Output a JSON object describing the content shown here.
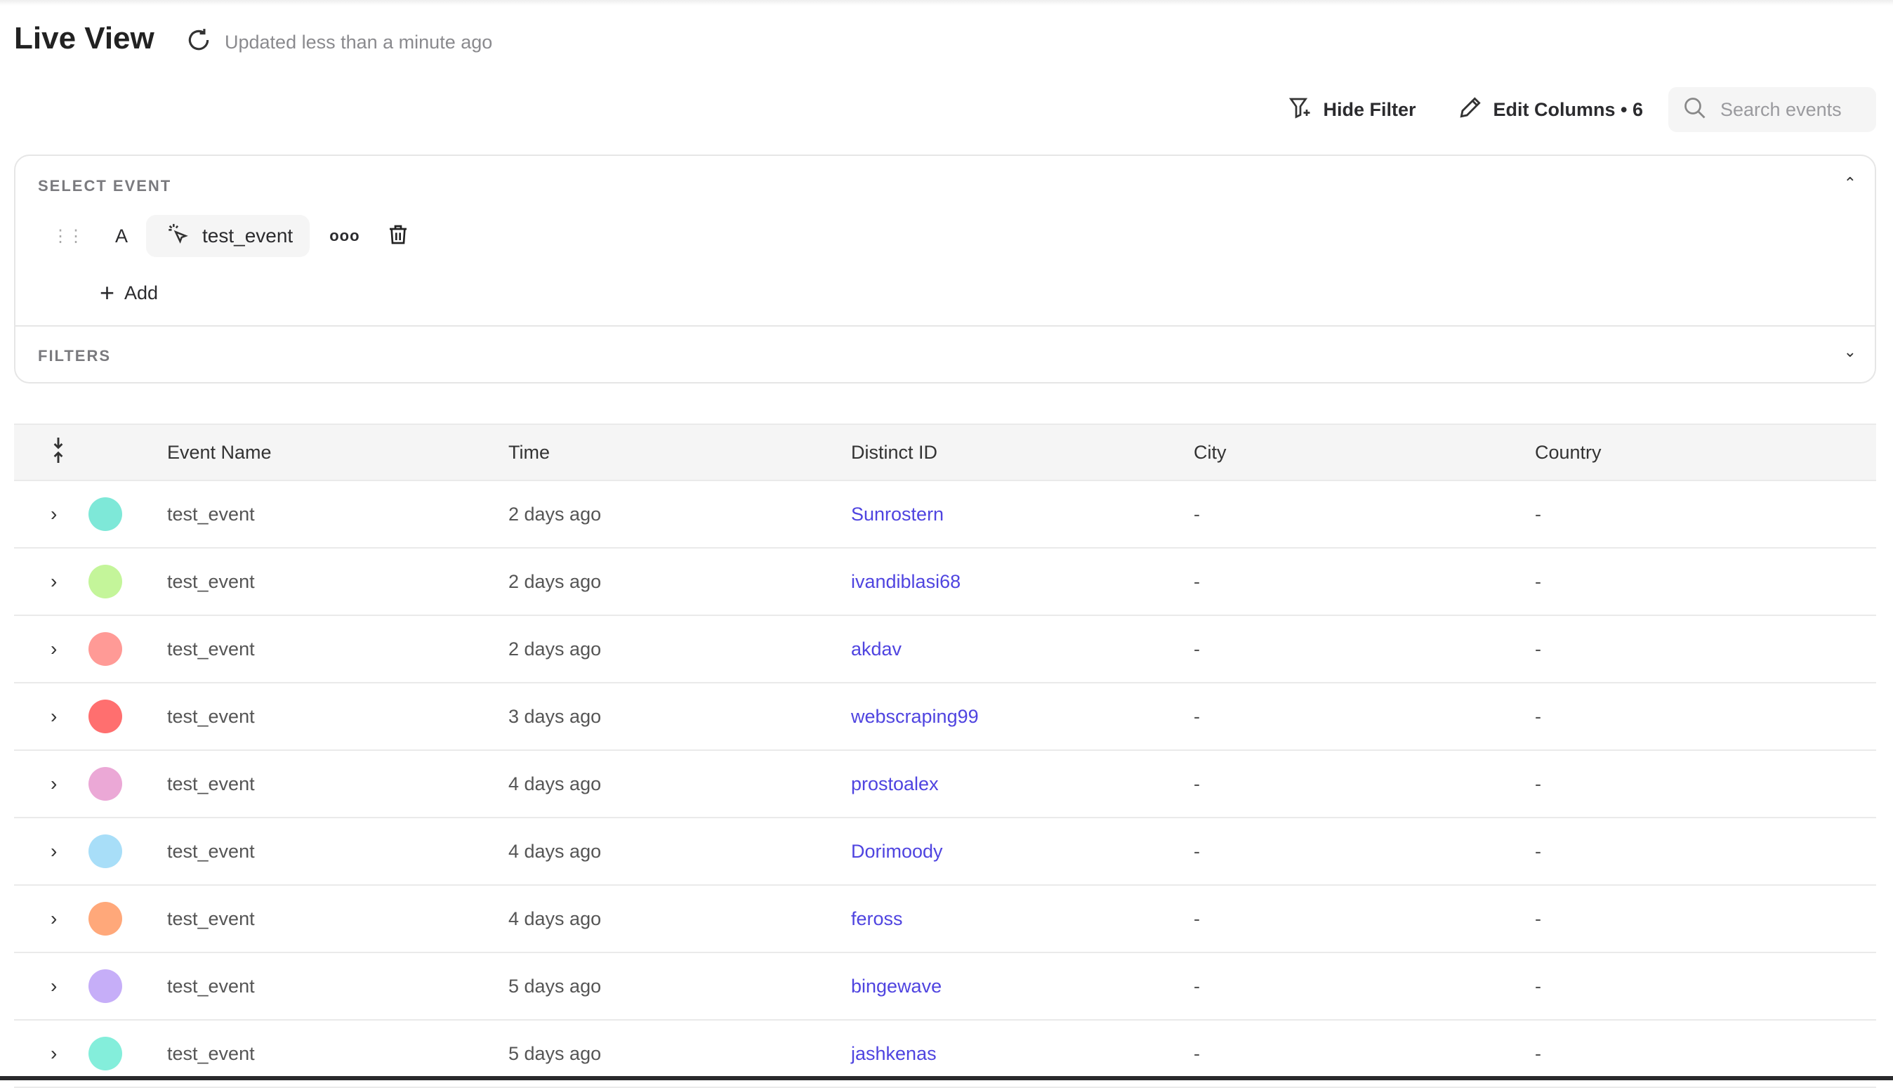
{
  "header": {
    "title": "Live View",
    "updated": "Updated less than a minute ago"
  },
  "toolbar": {
    "hide_filter": "Hide Filter",
    "edit_columns": "Edit Columns • 6",
    "search_placeholder": "Search events"
  },
  "select_event": {
    "label": "SELECT EVENT",
    "letter": "A",
    "event": "test_event",
    "add": "Add"
  },
  "filters": {
    "label": "FILTERS"
  },
  "link_color": "#4f44e0",
  "table": {
    "columns": [
      "Event Name",
      "Time",
      "Distinct ID",
      "City",
      "Country"
    ],
    "rows": [
      {
        "event": "test_event",
        "time": "2 days ago",
        "distinct_id": "Sunrostern",
        "city": "-",
        "country": "-",
        "avatar_color": "#7ee8d8"
      },
      {
        "event": "test_event",
        "time": "2 days ago",
        "distinct_id": "ivandiblasi68",
        "city": "-",
        "country": "-",
        "avatar_color": "#c4f59a"
      },
      {
        "event": "test_event",
        "time": "2 days ago",
        "distinct_id": "akdav",
        "city": "-",
        "country": "-",
        "avatar_color": "#ff9a96"
      },
      {
        "event": "test_event",
        "time": "3 days ago",
        "distinct_id": "webscraping99",
        "city": "-",
        "country": "-",
        "avatar_color": "#ff6f6f"
      },
      {
        "event": "test_event",
        "time": "4 days ago",
        "distinct_id": "prostoalex",
        "city": "-",
        "country": "-",
        "avatar_color": "#eba8d6"
      },
      {
        "event": "test_event",
        "time": "4 days ago",
        "distinct_id": "Dorimoody",
        "city": "-",
        "country": "-",
        "avatar_color": "#a8def8"
      },
      {
        "event": "test_event",
        "time": "4 days ago",
        "distinct_id": "feross",
        "city": "-",
        "country": "-",
        "avatar_color": "#ffa87a"
      },
      {
        "event": "test_event",
        "time": "5 days ago",
        "distinct_id": "bingewave",
        "city": "-",
        "country": "-",
        "avatar_color": "#c6aef8"
      },
      {
        "event": "test_event",
        "time": "5 days ago",
        "distinct_id": "jashkenas",
        "city": "-",
        "country": "-",
        "avatar_color": "#84eedb"
      }
    ]
  }
}
